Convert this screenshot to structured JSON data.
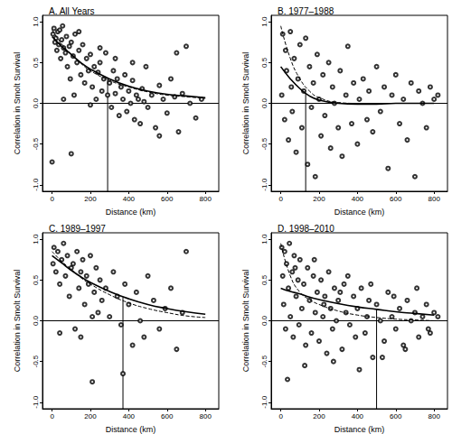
{
  "chart_data": [
    {
      "type": "scatter",
      "title": "A. All Years",
      "x_label": "Distance (km)",
      "y_label": "Correlation in Smolt Survival",
      "marker": "circle-open",
      "color": "#000000",
      "xlim": [
        -50,
        870
      ],
      "xticks": [
        0,
        200,
        400,
        600,
        800
      ],
      "ylim": [
        -1.08,
        1.08
      ],
      "yticks": [
        {
          "value": -1,
          "label": "-1.0"
        },
        -0.5,
        {
          "value": 0,
          "label": "0.0"
        },
        0.5,
        {
          "value": 1,
          "label": "1.0"
        }
      ],
      "grid": false,
      "x": [
        5,
        10,
        15,
        20,
        25,
        30,
        35,
        40,
        45,
        50,
        55,
        60,
        70,
        75,
        80,
        90,
        95,
        100,
        110,
        115,
        120,
        130,
        140,
        150,
        160,
        170,
        180,
        190,
        200,
        210,
        220,
        230,
        240,
        250,
        260,
        270,
        280,
        290,
        300,
        310,
        320,
        330,
        340,
        350,
        360,
        370,
        380,
        390,
        400,
        410,
        420,
        430,
        440,
        450,
        460,
        470,
        480,
        490,
        500,
        520,
        540,
        560,
        580,
        600,
        620,
        640,
        660,
        680,
        700,
        720,
        750,
        780,
        0,
        100,
        60,
        140,
        200,
        330,
        250,
        420,
        560,
        650
      ],
      "values": [
        0.85,
        0.92,
        0.75,
        0.8,
        0.65,
        0.88,
        0.72,
        0.9,
        0.55,
        0.78,
        0.95,
        0.68,
        0.62,
        0.82,
        0.45,
        0.7,
        0.3,
        0.75,
        0.58,
        0.1,
        0.85,
        0.5,
        0.65,
        0.35,
        0.72,
        0.25,
        0.55,
        0.4,
        0.6,
        0.2,
        0.45,
        0.05,
        0.38,
        0.5,
        0.15,
        0.3,
        0.62,
        0.1,
        0.25,
        -0.05,
        0.4,
        0.12,
        0.3,
        -0.15,
        0.2,
        0.05,
        0.35,
        -0.1,
        0.15,
        0.0,
        0.28,
        -0.2,
        0.1,
        0.05,
        -0.25,
        0.18,
        0.02,
        0.45,
        -0.05,
        0.1,
        -0.3,
        0.22,
        0.05,
        -0.12,
        0.3,
        0.08,
        -0.35,
        0.12,
        0.7,
        0.0,
        -0.18,
        0.05,
        -0.72,
        -0.62,
        0.05,
        0.88,
        -0.02,
        0.55,
        0.68,
        0.5,
        -0.4,
        0.62
      ],
      "curves": [
        {
          "line_style": "solid",
          "x": [
            0,
            50,
            100,
            150,
            200,
            300,
            400,
            500,
            600,
            700,
            800
          ],
          "values": [
            0.82,
            0.7,
            0.6,
            0.5,
            0.42,
            0.3,
            0.21,
            0.15,
            0.11,
            0.09,
            0.07
          ]
        },
        {
          "line_style": "dashed",
          "x": [
            0,
            50,
            100,
            150,
            200,
            300,
            400,
            500,
            600,
            700,
            800
          ],
          "values": [
            0.9,
            0.73,
            0.6,
            0.49,
            0.4,
            0.28,
            0.2,
            0.14,
            0.1,
            0.08,
            0.06
          ]
        }
      ],
      "reference_y": 0,
      "vertical_line": {
        "x": 290,
        "y": 0.31
      }
    },
    {
      "type": "scatter",
      "title": "B. 1977–1988",
      "x_label": "Distance (km)",
      "y_label": "Correlation in Smolt Survival",
      "marker": "circle-open",
      "color": "#000000",
      "xlim": [
        -50,
        870
      ],
      "xticks": [
        0,
        200,
        400,
        600,
        800
      ],
      "ylim": [
        -1.08,
        1.08
      ],
      "yticks": [
        {
          "value": -1,
          "label": "-1.0"
        },
        -0.5,
        {
          "value": 0,
          "label": "0.0"
        },
        0.5,
        {
          "value": 1,
          "label": "1.0"
        }
      ],
      "grid": false,
      "x": [
        5,
        10,
        20,
        25,
        30,
        40,
        50,
        55,
        60,
        70,
        80,
        90,
        100,
        110,
        120,
        130,
        140,
        150,
        160,
        170,
        180,
        190,
        200,
        210,
        220,
        230,
        250,
        260,
        270,
        280,
        300,
        310,
        320,
        340,
        350,
        370,
        380,
        400,
        410,
        430,
        450,
        460,
        480,
        500,
        520,
        540,
        560,
        580,
        600,
        620,
        640,
        660,
        680,
        700,
        720,
        740,
        760,
        780,
        800,
        820
      ],
      "values": [
        0.1,
        0.85,
        -0.2,
        0.65,
        0.4,
        -0.45,
        0.88,
        0.2,
        -0.1,
        0.55,
        -0.6,
        0.3,
        0.72,
        -0.3,
        0.15,
        0.8,
        -0.75,
        0.45,
        -0.05,
        0.25,
        -0.9,
        0.6,
        0.05,
        -0.4,
        0.35,
        -0.15,
        0.5,
        -0.55,
        0.2,
        0.0,
        -0.3,
        0.4,
        -0.65,
        0.1,
        0.7,
        -0.25,
        0.25,
        -0.5,
        0.05,
        0.3,
        -0.2,
        0.15,
        -0.35,
        0.45,
        -0.1,
        0.2,
        -0.8,
        0.1,
        0.35,
        -0.25,
        0.05,
        -0.45,
        0.25,
        -0.9,
        0.15,
        0.0,
        -0.3,
        0.2,
        0.05,
        0.1
      ],
      "curves": [
        {
          "line_style": "solid",
          "x": [
            0,
            50,
            100,
            150,
            200,
            300,
            400,
            500,
            600,
            700,
            800
          ],
          "values": [
            0.45,
            0.3,
            0.18,
            0.09,
            0.04,
            0.0,
            -0.01,
            -0.01,
            0.0,
            0.0,
            0.0
          ]
        },
        {
          "line_style": "dashed",
          "x": [
            0,
            50,
            100,
            150,
            200,
            300,
            400,
            500,
            600,
            700,
            800
          ],
          "values": [
            0.95,
            0.55,
            0.3,
            0.15,
            0.07,
            0.01,
            0.0,
            0.0,
            0.0,
            0.0,
            0.0
          ]
        }
      ],
      "reference_y": 0,
      "vertical_line": {
        "x": 130,
        "y": 0.12
      }
    },
    {
      "type": "scatter",
      "title": "C. 1989–1997",
      "x_label": "Distance (km)",
      "y_label": "Correlation in Smolt Survival",
      "marker": "circle-open",
      "color": "#000000",
      "xlim": [
        -50,
        870
      ],
      "xticks": [
        0,
        200,
        400,
        600,
        800
      ],
      "ylim": [
        -1.08,
        1.08
      ],
      "yticks": [
        {
          "value": -1,
          "label": "-1.0"
        },
        -0.5,
        {
          "value": 0,
          "label": "0.0"
        },
        0.5,
        {
          "value": 1,
          "label": "1.0"
        }
      ],
      "grid": false,
      "x": [
        5,
        10,
        20,
        30,
        40,
        50,
        60,
        70,
        80,
        90,
        100,
        110,
        120,
        130,
        140,
        150,
        160,
        170,
        180,
        190,
        200,
        210,
        220,
        230,
        240,
        250,
        260,
        280,
        300,
        320,
        340,
        360,
        380,
        400,
        420,
        440,
        460,
        480,
        500,
        530,
        560,
        590,
        620,
        650,
        680,
        700,
        40,
        150,
        210,
        370
      ],
      "values": [
        0.7,
        0.9,
        0.6,
        0.85,
        0.45,
        0.75,
        0.95,
        0.55,
        0.8,
        0.3,
        0.65,
        0.7,
        -0.1,
        0.85,
        0.4,
        0.6,
        0.75,
        0.2,
        0.55,
        0.45,
        0.8,
        -0.75,
        0.35,
        0.65,
        0.1,
        0.5,
        0.25,
        0.4,
        0.05,
        0.6,
        0.3,
        -0.05,
        0.45,
        0.2,
        -0.3,
        0.35,
        0.0,
        -0.2,
        0.55,
        0.25,
        -0.1,
        0.15,
        0.4,
        -0.35,
        0.1,
        0.85,
        -0.15,
        -0.2,
        0.05,
        -0.65
      ],
      "curves": [
        {
          "line_style": "solid",
          "x": [
            0,
            50,
            100,
            150,
            200,
            300,
            400,
            500,
            600,
            700,
            800
          ],
          "values": [
            0.8,
            0.71,
            0.62,
            0.54,
            0.47,
            0.36,
            0.27,
            0.2,
            0.15,
            0.11,
            0.08
          ]
        },
        {
          "line_style": "dashed",
          "x": [
            0,
            50,
            100,
            150,
            200,
            300,
            400,
            500,
            600,
            700,
            800
          ],
          "values": [
            0.85,
            0.73,
            0.63,
            0.53,
            0.45,
            0.32,
            0.22,
            0.15,
            0.1,
            0.06,
            0.04
          ]
        }
      ],
      "reference_y": 0,
      "vertical_line": {
        "x": 370,
        "y": 0.29
      }
    },
    {
      "type": "scatter",
      "title": "D. 1998–2010",
      "x_label": "Distance (km)",
      "y_label": "Correlation in Smolt Survival",
      "marker": "circle-open",
      "color": "#000000",
      "xlim": [
        -50,
        870
      ],
      "xticks": [
        0,
        200,
        400,
        600,
        800
      ],
      "ylim": [
        -1.08,
        1.08
      ],
      "yticks": [
        {
          "value": -1,
          "label": "-1.0"
        },
        -0.5,
        {
          "value": 0,
          "label": "0.0"
        },
        0.5,
        {
          "value": 1,
          "label": "1.0"
        }
      ],
      "grid": false,
      "x": [
        5,
        10,
        15,
        20,
        25,
        30,
        40,
        45,
        50,
        60,
        65,
        70,
        80,
        90,
        95,
        100,
        110,
        120,
        130,
        140,
        150,
        160,
        170,
        180,
        190,
        200,
        210,
        220,
        230,
        240,
        250,
        260,
        270,
        280,
        290,
        300,
        320,
        330,
        340,
        360,
        380,
        390,
        400,
        420,
        440,
        450,
        460,
        480,
        500,
        520,
        540,
        560,
        580,
        600,
        620,
        640,
        660,
        680,
        700,
        720,
        740,
        760,
        780,
        800,
        820,
        35,
        75,
        125,
        175,
        225,
        275,
        310,
        350,
        410,
        470,
        530,
        590,
        650,
        710,
        770
      ],
      "values": [
        0.9,
        0.55,
        0.2,
        0.85,
        -0.1,
        0.7,
        0.4,
        0.95,
        0.05,
        0.6,
        -0.2,
        0.8,
        0.3,
        0.5,
        -0.05,
        0.75,
        0.15,
        0.45,
        -0.3,
        0.65,
        0.25,
        -0.15,
        0.55,
        0.1,
        0.35,
        -0.25,
        0.5,
        0.05,
        0.3,
        -0.4,
        0.6,
        0.15,
        -0.1,
        0.4,
        0.0,
        0.25,
        -0.35,
        0.45,
        0.1,
        -0.05,
        0.3,
        -0.2,
        0.15,
        0.4,
        -0.15,
        0.05,
        0.25,
        -0.45,
        0.2,
        0.0,
        -0.25,
        0.35,
        0.05,
        -0.1,
        0.15,
        -0.3,
        0.25,
        0.0,
        0.1,
        -0.2,
        0.05,
        0.2,
        -0.15,
        0.1,
        0.05,
        -0.72,
        0.65,
        -0.55,
        0.75,
        0.2,
        -0.5,
        0.35,
        0.55,
        -0.6,
        0.45,
        -0.45,
        0.3,
        -0.35,
        0.4,
        -0.1
      ],
      "curves": [
        {
          "line_style": "solid",
          "x": [
            0,
            50,
            100,
            150,
            200,
            300,
            400,
            500,
            600,
            700,
            800
          ],
          "values": [
            0.4,
            0.36,
            0.33,
            0.29,
            0.26,
            0.21,
            0.17,
            0.14,
            0.11,
            0.09,
            0.07
          ]
        },
        {
          "line_style": "dashed",
          "x": [
            0,
            50,
            100,
            150,
            200,
            300,
            400,
            500,
            600,
            700,
            800
          ],
          "values": [
            0.95,
            0.55,
            0.35,
            0.26,
            0.2,
            0.12,
            0.07,
            0.04,
            0.02,
            0.01,
            0.0
          ]
        }
      ],
      "reference_y": 0,
      "vertical_line": {
        "x": 500,
        "y": 0.14
      }
    }
  ]
}
